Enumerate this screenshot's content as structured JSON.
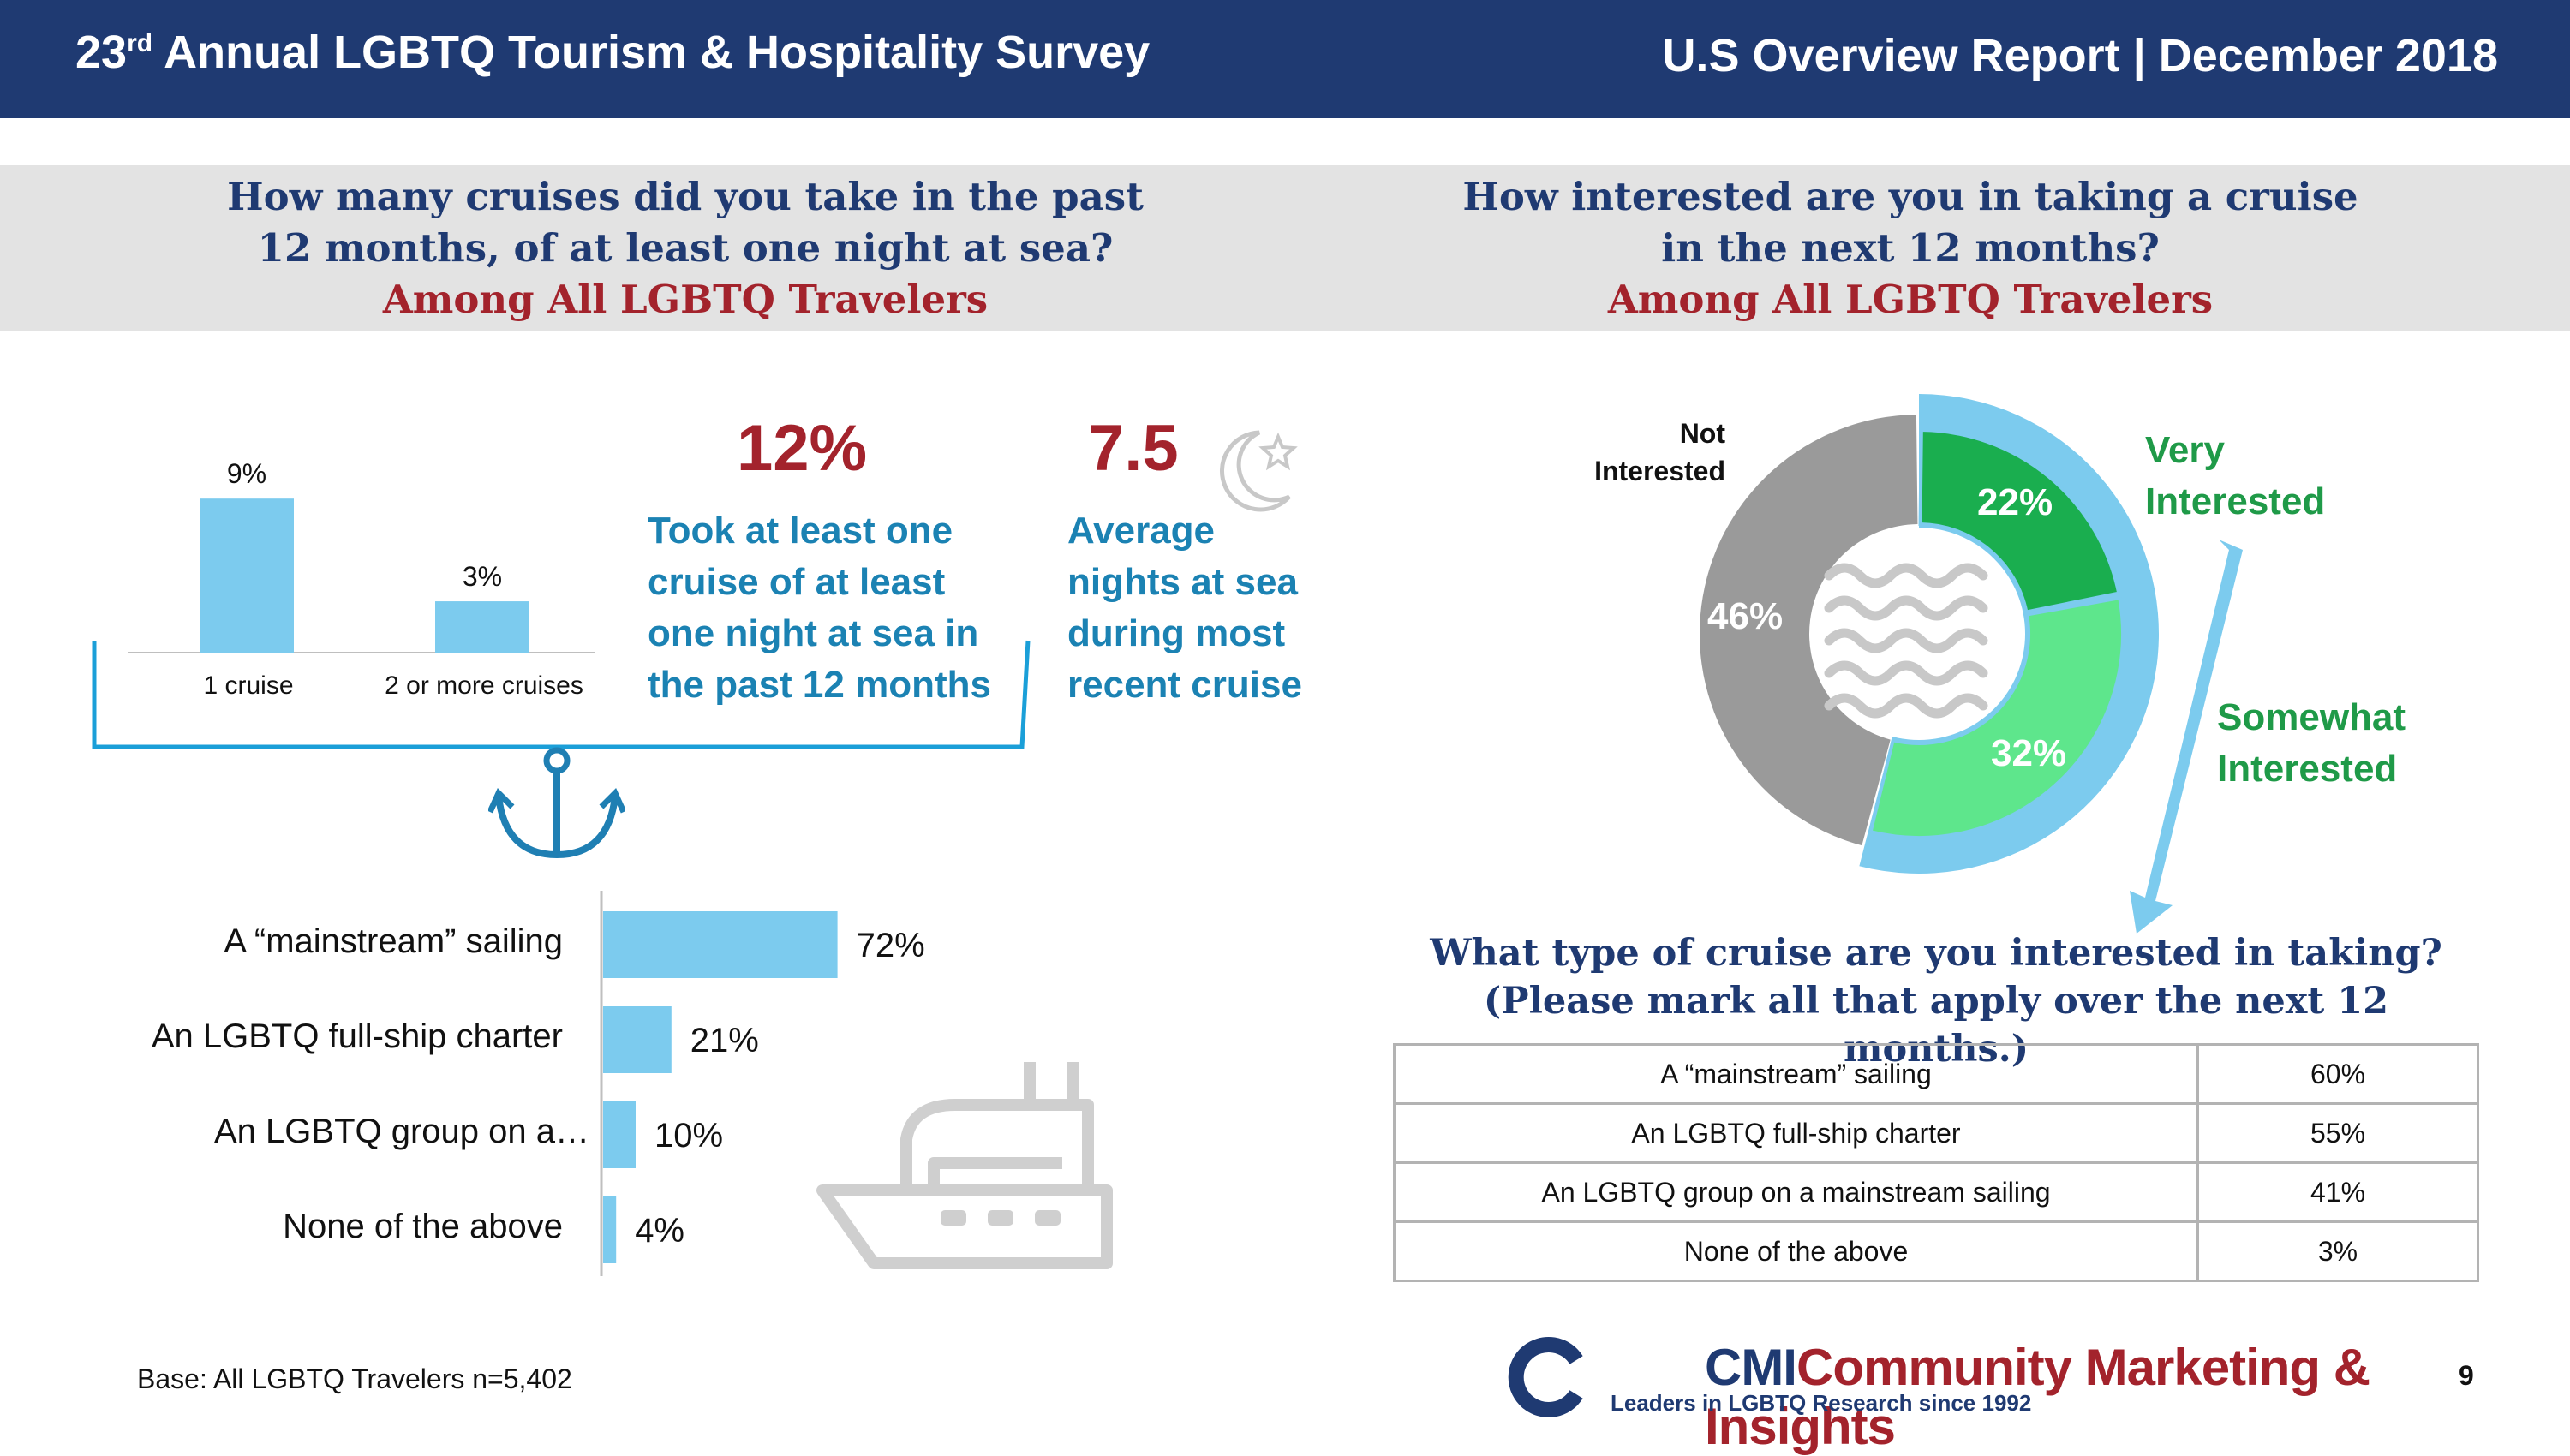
{
  "header": {
    "title_pre": "23",
    "title_sup": "rd",
    "title_post": " Annual LGBTQ Tourism & Hospitality Survey",
    "report": "U.S Overview Report | December 2018"
  },
  "left_question": {
    "line1": "How many cruises did you take in the past",
    "line2": "12 months, of at least one night at sea?",
    "sub": "Among All LGBTQ Travelers"
  },
  "right_question": {
    "line1": "How interested are you in taking a cruise",
    "line2": "in the next 12 months?",
    "sub": "Among All LGBTQ Travelers"
  },
  "stat_cruise": {
    "value": "12%",
    "line1": "Took at least one",
    "line2": "cruise of at least",
    "line3": "one night at sea in",
    "line4": "the past 12 months"
  },
  "stat_nights": {
    "value": "7.5",
    "line1": "Average",
    "line2": "nights at sea",
    "line3": "during most",
    "line4": "recent cruise"
  },
  "icons": {
    "moon": "moon-star-icon",
    "anchor": "anchor-icon",
    "ship": "cruise-ship-icon",
    "waves": "waves-icon",
    "logo": "cmi-logo-icon"
  },
  "colors": {
    "navy": "#1f3a72",
    "red": "#a3232c",
    "teal_text": "#1b82b3",
    "light_blue": "#7ccbee",
    "very_green": "#1aae4f",
    "somewhat_green": "#5ee68c",
    "grey": "#9a9a9a"
  },
  "chart_data": [
    {
      "type": "bar",
      "categories": [
        "1 cruise",
        "2 or more cruises"
      ],
      "values": [
        9,
        3
      ],
      "value_labels": [
        "9%",
        "3%"
      ],
      "ylim": [
        0,
        10
      ]
    },
    {
      "type": "bar",
      "orientation": "horizontal",
      "categories": [
        "A “mainstream” sailing",
        "An LGBTQ full-ship charter",
        "An LGBTQ group on a…",
        "None of the above"
      ],
      "values": [
        72,
        21,
        10,
        4
      ],
      "value_labels": [
        "72%",
        "21%",
        "10%",
        "4%"
      ],
      "xlim": [
        0,
        100
      ]
    },
    {
      "type": "pie",
      "style": "donut",
      "labels": [
        "Very Interested",
        "Somewhat Interested",
        "Not Interested"
      ],
      "values": [
        22,
        32,
        46
      ],
      "value_labels": [
        "22%",
        "32%",
        "46%"
      ],
      "colors": [
        "#1aae4f",
        "#5ee68c",
        "#9a9a9a"
      ]
    },
    {
      "type": "table",
      "title_line1": "What type of cruise are you interested in taking?",
      "title_line2": "(Please mark all that apply over the next 12 months.)",
      "rows": [
        {
          "label": "A “mainstream” sailing",
          "value": "60%"
        },
        {
          "label": "An LGBTQ full-ship charter",
          "value": "55%"
        },
        {
          "label": "An LGBTQ group on a mainstream sailing",
          "value": "41%"
        },
        {
          "label": "None of the above",
          "value": "3%"
        }
      ]
    }
  ],
  "donut_legend": {
    "not_line1": "Not",
    "not_line2": "Interested",
    "very_line1": "Very",
    "very_line2": "Interested",
    "some_line1": "Somewhat",
    "some_line2": "Interested"
  },
  "footer": {
    "base": "Base: All LGBTQ Travelers n=5,402",
    "logo_cmi": "CMI",
    "logo_name": "Community Marketing & Insights",
    "logo_tagline": "Leaders in LGBTQ Research since 1992",
    "page": "9"
  }
}
